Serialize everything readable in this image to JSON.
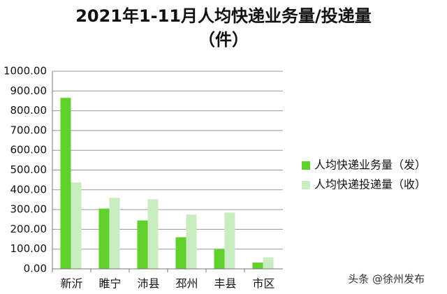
{
  "chart_data": {
    "type": "bar",
    "title": [
      "2021年1-11月人均快递业务量/投递量",
      "（件）"
    ],
    "categories": [
      "新沂",
      "睢宁",
      "沛县",
      "邳州",
      "丰县",
      "市区"
    ],
    "series": [
      {
        "name": "人均快递业务量（发）",
        "color": "#5fd12a",
        "values": [
          865,
          305,
          245,
          160,
          100,
          32
        ]
      },
      {
        "name": "人均快递投递量（收）",
        "color": "#c9ecc0",
        "values": [
          437,
          360,
          352,
          275,
          285,
          58
        ]
      }
    ],
    "ylim": [
      0,
      1000
    ],
    "yticks": [
      {
        "value": 0,
        "label": "0.00"
      },
      {
        "value": 100,
        "label": "100.00"
      },
      {
        "value": 200,
        "label": "200.00"
      },
      {
        "value": 300,
        "label": "300.00"
      },
      {
        "value": 400,
        "label": "400.00"
      },
      {
        "value": 500,
        "label": "500.00"
      },
      {
        "value": 600,
        "label": "600.00"
      },
      {
        "value": 700,
        "label": "700.00"
      },
      {
        "value": 800,
        "label": "800.00"
      },
      {
        "value": 900,
        "label": "900.00"
      },
      {
        "value": 1000,
        "label": "1000.00"
      }
    ],
    "grid": true,
    "legend": "right",
    "watermark": "头条 @徐州发布"
  }
}
